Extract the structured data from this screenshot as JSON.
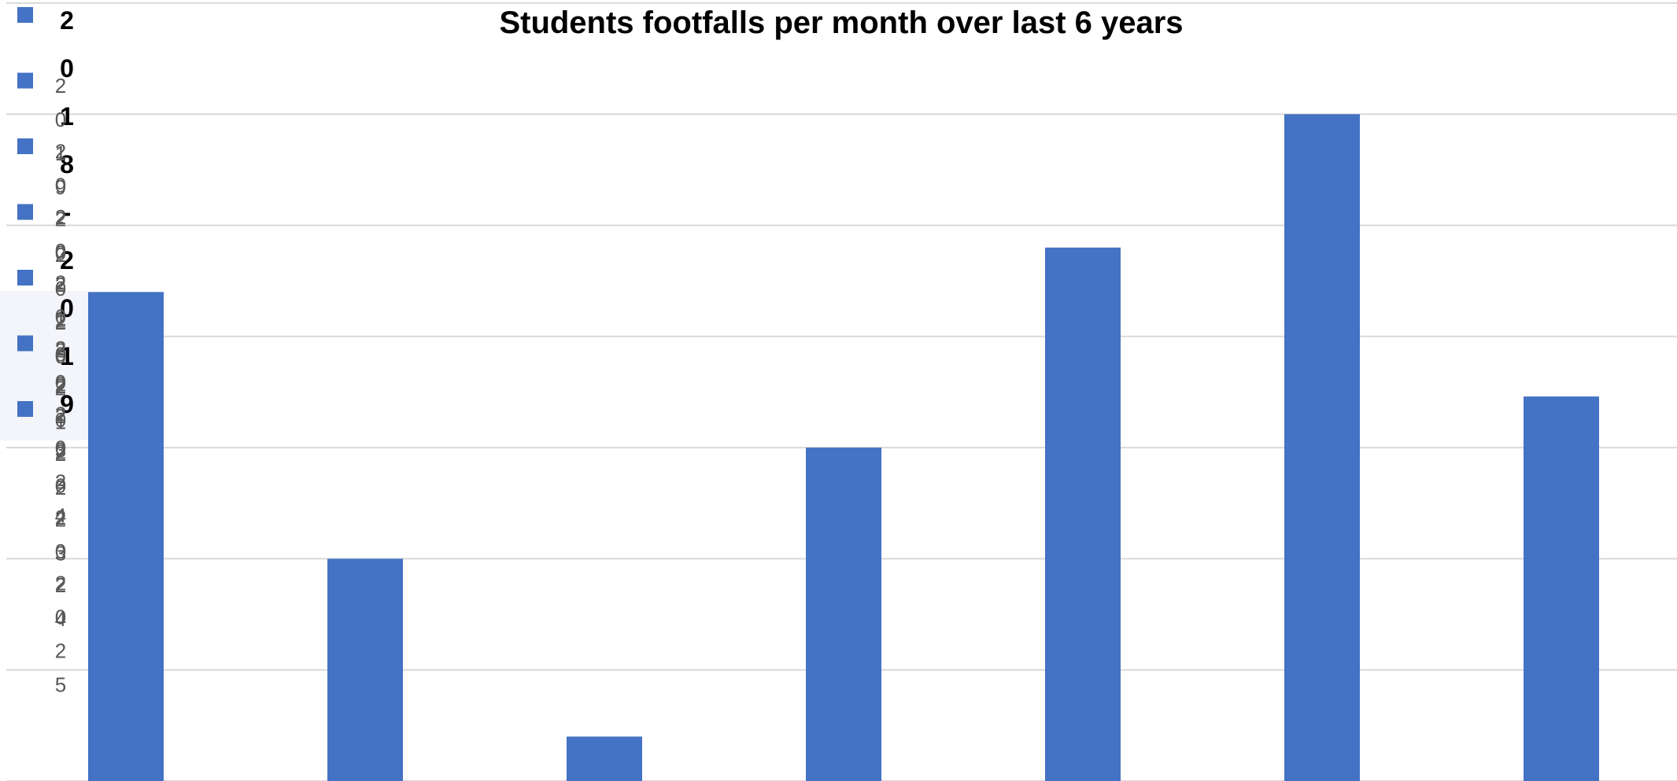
{
  "chart_data": {
    "type": "bar",
    "title": "Students footfalls per month over last 6 years",
    "categories": [
      "",
      "",
      "",
      "",
      "",
      "",
      ""
    ],
    "values": [
      4.4,
      2.0,
      0.4,
      3.0,
      4.8,
      6.0,
      3.46
    ],
    "ylim": [
      0,
      7
    ],
    "grid": true,
    "legend_position": "left",
    "color": "#4472c4",
    "legend": {
      "header": "2018-2019",
      "entries": [
        "2019-2020",
        "2020-2021",
        "2021-2022",
        "2022-2023",
        "2023-2024",
        "2024-2025"
      ]
    }
  }
}
